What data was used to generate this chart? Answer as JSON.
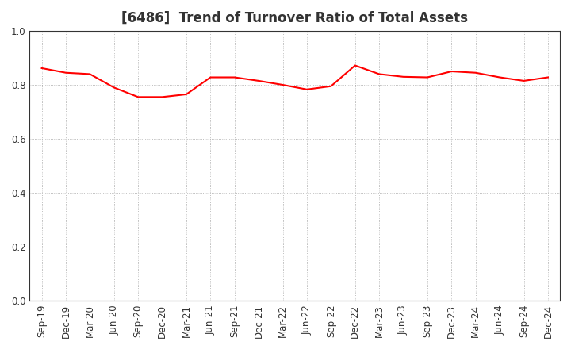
{
  "title": "[6486]  Trend of Turnover Ratio of Total Assets",
  "line_color": "#FF0000",
  "line_width": 1.5,
  "background_color": "#FFFFFF",
  "grid_color": "#AAAAAA",
  "ylim": [
    0.0,
    1.0
  ],
  "yticks": [
    0.0,
    0.2,
    0.4,
    0.6,
    0.8,
    1.0
  ],
  "x_labels": [
    "Sep-19",
    "Dec-19",
    "Mar-20",
    "Jun-20",
    "Sep-20",
    "Dec-20",
    "Mar-21",
    "Jun-21",
    "Sep-21",
    "Dec-21",
    "Mar-22",
    "Jun-22",
    "Sep-22",
    "Dec-22",
    "Mar-23",
    "Jun-23",
    "Sep-23",
    "Dec-23",
    "Mar-24",
    "Jun-24",
    "Sep-24",
    "Dec-24"
  ],
  "values": [
    0.862,
    0.845,
    0.84,
    0.79,
    0.755,
    0.755,
    0.765,
    0.828,
    0.828,
    0.815,
    0.8,
    0.783,
    0.795,
    0.872,
    0.84,
    0.83,
    0.828,
    0.85,
    0.845,
    0.828,
    0.815,
    0.828
  ],
  "title_fontsize": 12,
  "tick_fontsize": 8.5,
  "title_color": "#333333"
}
